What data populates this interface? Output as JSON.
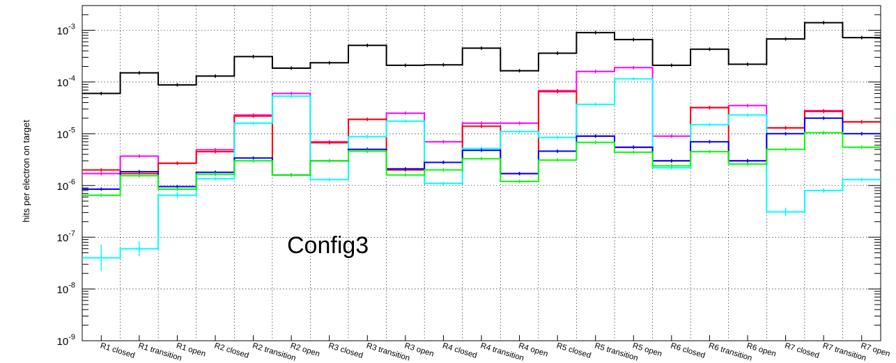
{
  "chart_data": {
    "type": "line",
    "subtype": "step-histogram",
    "ylabel": "hits per electron on target",
    "yscale": "log",
    "ylim": [
      1e-09,
      0.003
    ],
    "yticks": [
      {
        "value": 1e-09,
        "base": "10",
        "exp": "-9"
      },
      {
        "value": 1e-08,
        "base": "10",
        "exp": "-8"
      },
      {
        "value": 1e-07,
        "base": "10",
        "exp": "-7"
      },
      {
        "value": 1e-06,
        "base": "10",
        "exp": "-6"
      },
      {
        "value": 1e-05,
        "base": "10",
        "exp": "-5"
      },
      {
        "value": 0.0001,
        "base": "10",
        "exp": "-4"
      },
      {
        "value": 0.001,
        "base": "10",
        "exp": "-3"
      }
    ],
    "grid": true,
    "categories": [
      "R1 closed",
      "R1 transition",
      "R1 open",
      "R2 closed",
      "R2 transition",
      "R2 open",
      "R3 closed",
      "R3 transition",
      "R3 open",
      "R4 closed",
      "R4 transition",
      "R4 open",
      "R5 closed",
      "R5 transition",
      "R5 open",
      "R6 closed",
      "R6 transition",
      "R6 open",
      "R7 closed",
      "R7 transition",
      "R7 open"
    ],
    "series": [
      {
        "color": "#000000",
        "values": [
          6e-05,
          0.00015,
          8.8e-05,
          0.00013,
          0.00031,
          0.000185,
          0.000235,
          0.00051,
          0.00021,
          0.000215,
          0.00045,
          0.000165,
          0.00036,
          0.0009,
          0.00066,
          0.00021,
          0.00043,
          0.00022,
          0.00068,
          0.0014,
          0.00072
        ]
      },
      {
        "color": "#ff00ff",
        "values": [
          1.7e-06,
          3.7e-06,
          2.7e-06,
          4.9e-06,
          2.3e-05,
          6e-05,
          7e-06,
          1.9e-05,
          2.5e-05,
          7e-06,
          1.6e-05,
          1.6e-05,
          6.8e-05,
          0.00016,
          0.00019,
          9e-06,
          3.2e-05,
          3.5e-05,
          1.3e-05,
          2.8e-05,
          1.7e-05
        ]
      },
      {
        "color": "#ff0000",
        "values": [
          2e-06,
          1.7e-06,
          2.7e-06,
          4.5e-06,
          2.2e-05,
          1.6e-06,
          6.7e-06,
          1.9e-05,
          2e-06,
          2.8e-06,
          1.4e-05,
          1.7e-06,
          6.5e-05,
          9e-06,
          5.5e-06,
          3e-06,
          3.2e-05,
          3e-06,
          1.3e-05,
          2.7e-05,
          1.7e-05
        ]
      },
      {
        "color": "#00ffff",
        "values": [
          4e-08,
          6e-08,
          6.5e-07,
          1.35e-06,
          1.6e-05,
          5.3e-05,
          1.3e-06,
          8.8e-06,
          1.75e-05,
          1.1e-06,
          5.2e-06,
          1.1e-05,
          8.5e-06,
          3.7e-05,
          0.000115,
          2.2e-06,
          1.5e-05,
          2.3e-05,
          3.1e-07,
          8e-07,
          1.3e-06
        ]
      },
      {
        "color": "#0000ff",
        "values": [
          8.5e-07,
          1.85e-06,
          9.5e-07,
          1.8e-06,
          3.4e-06,
          1.6e-06,
          3e-06,
          5e-06,
          2.1e-06,
          2.8e-06,
          4.8e-06,
          1.7e-06,
          4.6e-06,
          9e-06,
          5.5e-06,
          3e-06,
          7e-06,
          3e-06,
          1e-05,
          2e-05,
          1e-05
        ]
      },
      {
        "color": "#00ff00",
        "values": [
          6.5e-07,
          1.55e-06,
          8.5e-07,
          1.65e-06,
          3e-06,
          1.6e-06,
          3e-06,
          4.6e-06,
          1.6e-06,
          2e-06,
          3.3e-06,
          1.2e-06,
          3.1e-06,
          6.8e-06,
          4.4e-06,
          2.4e-06,
          4.5e-06,
          2.6e-06,
          5e-06,
          1.05e-05,
          5.5e-06
        ]
      }
    ],
    "annotation": "Config3"
  }
}
